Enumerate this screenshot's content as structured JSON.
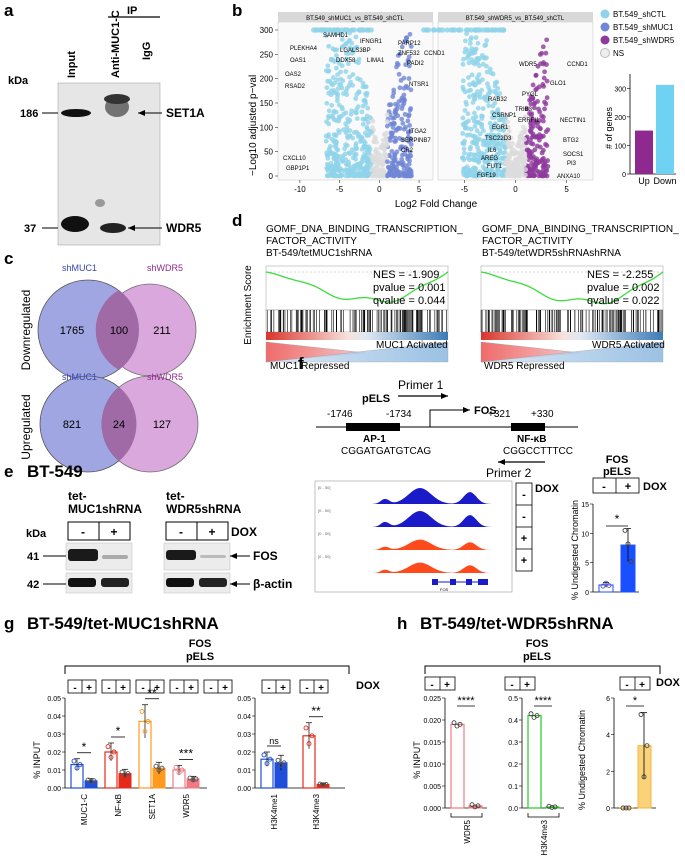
{
  "panels": {
    "a": {
      "letter": "a",
      "ip_label": "IP",
      "kda": "kDa",
      "lanes": [
        "Input",
        "Anti-MUC1-C",
        "IgG"
      ],
      "markers": [
        "186",
        "37"
      ],
      "bands": [
        "SET1A",
        "WDR5"
      ]
    },
    "b": {
      "letter": "b",
      "facet_left": "BT.549_shMUC1_vs_BT.549_shCTL",
      "facet_right": "BT.549_shWDR5_vs_BT.549_shCTL",
      "ylabel": "−Log10 adjusted p−val",
      "xlabel": "Log2 Fold Change",
      "yticks": [
        "0",
        "50",
        "100",
        "150",
        "200",
        "250",
        "300"
      ],
      "xticks_left": [
        "-10",
        "-5",
        "0",
        "5"
      ],
      "xticks_right": [
        "-5",
        "0",
        "5"
      ],
      "legend": [
        {
          "label": "BT.549_shCTL",
          "color": "#8fd3ea"
        },
        {
          "label": "BT.549_shMUC1",
          "color": "#6f86d6"
        },
        {
          "label": "BT.549_shWDR5",
          "color": "#8e3a9c"
        },
        {
          "label": "NS",
          "color": "#eeeeee"
        }
      ],
      "genes_left": [
        "SAMHD1",
        "IFNGR1",
        "PARP12",
        "PLEKHA4",
        "LGALS3BP",
        "ZNF532",
        "CCND1",
        "OAS1",
        "DDX58",
        "LIMA1",
        "PADI2",
        "OAS2",
        "RSAD2",
        "NTSR1",
        "ITGA2",
        "SERPINB7",
        "CR2",
        "CXCL10",
        "GBP1P1"
      ],
      "genes_right": [
        "WDR5",
        "CCND1",
        "GLO1",
        "PYGL",
        "RAB32",
        "TRIB3",
        "CSRNP1",
        "ERRFI1",
        "NECTIN1",
        "EGR1",
        "TSC22D3",
        "BTG2",
        "IL6",
        "SOCS1",
        "AREG",
        "PI3",
        "FUT1",
        "FGF19",
        "ANXA10"
      ]
    },
    "c": {
      "letter": "c",
      "down_label": "Downregulated",
      "up_label": "Upregulated",
      "set_a": "shMUC1",
      "set_b": "shWDR5",
      "down": {
        "only_a": "1765",
        "both": "100",
        "only_b": "211"
      },
      "up": {
        "only_a": "821",
        "both": "24",
        "only_b": "127"
      }
    },
    "d": {
      "letter": "d",
      "ylabel": "Enrichment Score",
      "left": {
        "title1": "GOMF_DNA_BINDING_TRANSCRIPTION_",
        "title2": "FACTOR_ACTIVITY",
        "title3": "BT-549/tetMUC1shRNA",
        "nes": "NES = -1.909",
        "p": "pvalue = 0.001",
        "q": "qvalue = 0.044",
        "repressed": "MUC1 Repressed",
        "activated": "MUC1 Activated"
      },
      "right": {
        "title1": "GOMF_DNA_BINDING_TRANSCRIPTION_",
        "title2": "FACTOR_ACTIVITY",
        "title3": "BT-549/tetWDR5shRNAshRNA",
        "nes": "NES = -2.255",
        "p": "pvalue = 0.002",
        "q": "qvalue = 0.022",
        "repressed": "WDR5 Repressed",
        "activated": "WDR5 Activated"
      }
    },
    "e": {
      "letter": "e",
      "title": "BT-549",
      "kda": "kDa",
      "group1": [
        "tet-",
        "MUC1shRNA"
      ],
      "group2": [
        "tet-",
        "WDR5shRNA"
      ],
      "minus": "-",
      "plus": "+",
      "dox": "DOX",
      "markers": [
        "41",
        "42"
      ],
      "bands": [
        "FOS",
        "β-actin"
      ]
    },
    "f": {
      "letter": "f",
      "primer1": "Primer 1",
      "primer2": "Primer 2",
      "pels": "pELS",
      "pos1": "-1746",
      "pos2": "-1734",
      "pos3": "+321",
      "pos4": "+330",
      "gene": "FOS",
      "ap1": "AP-1",
      "ap1_seq": "CGGATGATGTCAG",
      "nfkb": "NF-κB",
      "nfkb_seq": "CGGCCTTTCC",
      "dox": "DOX",
      "track_scale": "[0 - 50]",
      "track_gene": "FOS",
      "bar_title1": "FOS",
      "bar_title2": "pELS",
      "bar_ylabel": "% Undigested Chromatin",
      "bar_yticks": [
        "0",
        "5",
        "10",
        "15"
      ],
      "star": "*"
    },
    "g": {
      "letter": "g",
      "title": "BT-549/tet-MUC1shRNA",
      "fos": "FOS",
      "pels": "pELS",
      "dox": "DOX",
      "ylabel": "% INPUT",
      "yticks1": [
        "0.00",
        "0.01",
        "0.02",
        "0.03",
        "0.04",
        "0.05"
      ],
      "yticks2": [
        "0.00",
        "0.01",
        "0.02",
        "0.03",
        "0.04",
        "0.05"
      ],
      "cats1": [
        "MUC1-C",
        "NF-κB",
        "SET1A",
        "WDR5"
      ],
      "cats2": [
        "H3K4me1",
        "H3K4me3"
      ],
      "sig1": [
        "*",
        "*",
        "**",
        "***"
      ],
      "sig2": [
        "ns",
        "**"
      ]
    },
    "h": {
      "letter": "h",
      "title": "BT-549/tet-WDR5shRNA",
      "fos": "FOS",
      "pels": "pELS",
      "dox": "DOX",
      "ylabel": "% INPUT",
      "ylabel3": "% Undigested Chromatin",
      "cats": [
        "WDR5",
        "H3K4me3"
      ],
      "yticks1": [
        "0.000",
        "0.005",
        "0.010",
        "0.015",
        "0.020",
        "0.025"
      ],
      "yticks2": [
        "0.0",
        "0.1",
        "0.2",
        "0.3",
        "0.4",
        "0.5"
      ],
      "yticks3": [
        "0",
        "2",
        "4",
        "6"
      ],
      "sig": [
        "****",
        "****",
        "*"
      ]
    }
  },
  "chart_data": [
    {
      "type": "bar",
      "title": "# of genes",
      "categories": [
        "Up",
        "Down"
      ],
      "values": [
        152,
        312
      ],
      "ylim": [
        0,
        350
      ],
      "yticks": [
        0,
        100,
        200,
        300
      ],
      "colors": [
        "#8e2a8f",
        "#6fd2f2"
      ]
    },
    {
      "type": "bar",
      "title": "FOS pELS % Undigested Chromatin",
      "categories": [
        "-",
        "+"
      ],
      "values": [
        1.2,
        8.0
      ],
      "errors": [
        0.4,
        2.8
      ],
      "ylim": [
        0,
        15
      ]
    },
    {
      "type": "bar",
      "title": "BT-549/tet-MUC1shRNA FOS pELS",
      "ylabel": "% INPUT",
      "categories": [
        "MUC1-C",
        "NF-κB",
        "SET1A",
        "WDR5"
      ],
      "series": [
        {
          "name": "-",
          "values": [
            0.013,
            0.02,
            0.037,
            0.01
          ]
        },
        {
          "name": "+",
          "values": [
            0.004,
            0.008,
            0.011,
            0.005
          ]
        }
      ],
      "ylim": [
        0,
        0.05
      ]
    },
    {
      "type": "bar",
      "title": "BT-549/tet-MUC1shRNA histone marks",
      "ylabel": "% INPUT",
      "categories": [
        "H3K4me1",
        "H3K4me3"
      ],
      "series": [
        {
          "name": "-",
          "values": [
            0.016,
            0.029
          ]
        },
        {
          "name": "+",
          "values": [
            0.014,
            0.002
          ]
        }
      ],
      "ylim": [
        0,
        0.05
      ]
    },
    {
      "type": "bar",
      "title": "BT-549/tet-WDR5shRNA FOS pELS",
      "categories": [
        "WDR5",
        "H3K4me3",
        "% Undigested Chromatin"
      ],
      "series": [
        {
          "name": "-",
          "values": [
            0.019,
            0.42,
            0.0
          ]
        },
        {
          "name": "+",
          "values": [
            0.0005,
            0.005,
            3.4
          ]
        }
      ]
    }
  ]
}
